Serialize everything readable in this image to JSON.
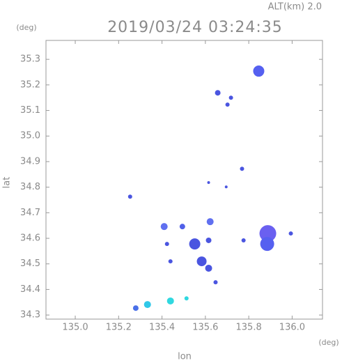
{
  "chart_data": {
    "type": "scatter",
    "title": "2019/03/24 03:24:35",
    "annotation": "ALT(km) 2.0",
    "y_unit": "(deg)",
    "x_unit": "(deg)",
    "x_label": "lon",
    "y_label": "lat",
    "x": [
      135.846,
      135.657,
      135.718,
      135.702,
      135.769,
      135.253,
      135.615,
      135.696,
      135.41,
      135.494,
      135.622,
      135.551,
      135.583,
      135.615,
      135.439,
      135.647,
      135.423,
      135.888,
      135.885,
      135.994,
      135.776,
      135.615,
      135.333,
      135.439,
      135.279,
      135.513
    ],
    "values": [
      35.254,
      35.169,
      35.15,
      35.123,
      34.872,
      34.763,
      34.818,
      34.801,
      34.646,
      34.646,
      34.665,
      34.578,
      34.51,
      34.483,
      34.51,
      34.428,
      34.578,
      34.619,
      34.578,
      34.619,
      34.592,
      34.592,
      34.341,
      34.355,
      34.327,
      34.365
    ],
    "sizes": [
      8,
      4,
      3,
      3,
      3,
      3,
      2,
      2,
      5,
      4,
      5,
      8,
      7,
      5,
      3,
      3,
      3,
      12,
      10,
      3,
      3,
      4,
      5,
      5,
      4,
      3
    ],
    "colors": [
      "#5560f0",
      "#4a55e0",
      "#4a55e0",
      "#4a55e0",
      "#4a55e0",
      "#4a55e0",
      "#4a55e0",
      "#4a55e0",
      "#6070f0",
      "#5060e8",
      "#6070f0",
      "#4a55e0",
      "#4a55e0",
      "#4a55e0",
      "#4a55e0",
      "#4a55e0",
      "#4a55e0",
      "#6a60f0",
      "#5560f0",
      "#4a55e0",
      "#4a55e0",
      "#4a55e0",
      "#30c8e8",
      "#30d8e0",
      "#4a70e8",
      "#30d8e0"
    ],
    "xlim": [
      134.865,
      136.14
    ],
    "ylim": [
      34.284,
      35.374
    ],
    "xticks": [
      {
        "value": 135,
        "label": "135.0"
      },
      135.2,
      135.4,
      135.6,
      135.8,
      {
        "value": 136,
        "label": "136.0"
      }
    ],
    "yticks": [
      34.3,
      34.4,
      34.5,
      34.6,
      34.7,
      34.8,
      34.9,
      {
        "value": 35,
        "label": "35.0"
      },
      35.1,
      35.2,
      35.3
    ]
  }
}
